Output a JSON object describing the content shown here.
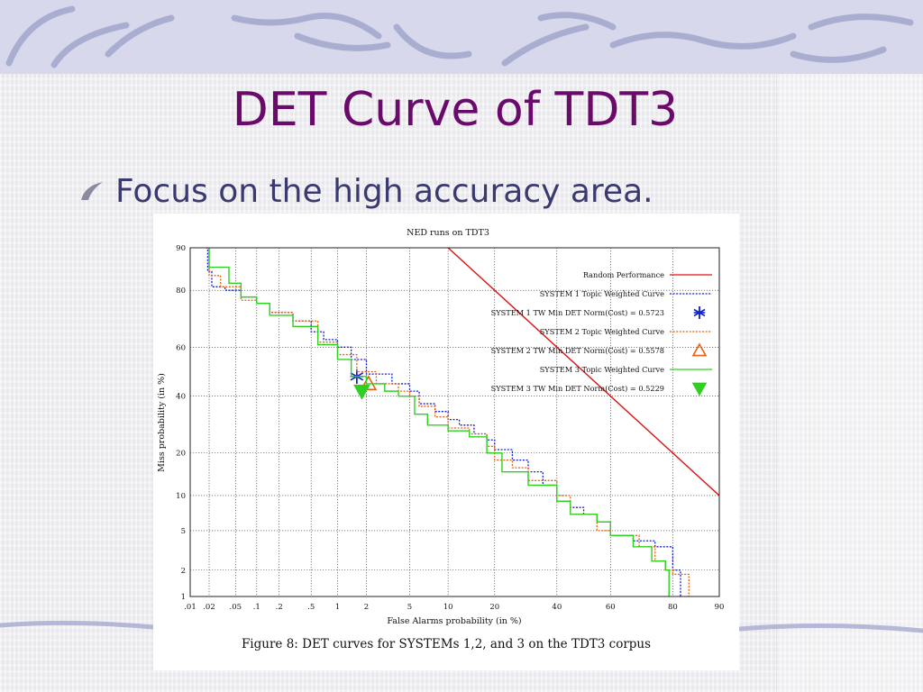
{
  "slide": {
    "title": "DET Curve of TDT3",
    "bullet": "Focus on the high accuracy area."
  },
  "chart_data": {
    "type": "line",
    "title": "NED runs on TDT3",
    "xlabel": "False Alarms probability (in %)",
    "ylabel": "Miss probability (in %)",
    "xscale": "normal-deviate",
    "yscale": "normal-deviate",
    "x_ticks": [
      0.01,
      0.02,
      0.05,
      0.1,
      0.2,
      0.5,
      1,
      2,
      5,
      10,
      20,
      40,
      60,
      80,
      90
    ],
    "x_tick_labels": [
      ".01",
      ".02",
      ".05",
      ".1",
      ".2",
      ".5",
      "1",
      "2",
      "5",
      "10",
      "20",
      "40",
      "60",
      "80",
      "90"
    ],
    "y_ticks": [
      1,
      2,
      5,
      10,
      20,
      40,
      60,
      80,
      90
    ],
    "y_tick_labels": [
      "1",
      "2",
      "5",
      "10",
      "20",
      "40",
      "60",
      "80",
      "90"
    ],
    "grid": true,
    "legend_position": "top-right",
    "series": [
      {
        "name": "Random Performance",
        "style": "solid",
        "color": "#e01010",
        "points": [
          [
            10,
            90
          ],
          [
            90,
            10
          ]
        ]
      },
      {
        "name": "SYSTEM 1 Topic Weighted Curve",
        "style": "dotted",
        "color": "#1020d0",
        "points": [
          [
            0.018,
            90
          ],
          [
            0.019,
            85
          ],
          [
            0.022,
            81
          ],
          [
            0.035,
            80
          ],
          [
            0.06,
            78
          ],
          [
            0.1,
            76
          ],
          [
            0.15,
            73
          ],
          [
            0.3,
            70
          ],
          [
            0.5,
            66
          ],
          [
            0.7,
            63
          ],
          [
            1,
            60
          ],
          [
            1.4,
            55
          ],
          [
            2,
            49
          ],
          [
            3.5,
            45
          ],
          [
            5,
            42
          ],
          [
            6,
            37
          ],
          [
            8,
            34
          ],
          [
            10,
            31
          ],
          [
            12,
            29
          ],
          [
            15,
            26
          ],
          [
            18,
            24
          ],
          [
            20,
            21
          ],
          [
            25,
            18
          ],
          [
            30,
            15
          ],
          [
            35,
            12
          ],
          [
            40,
            9
          ],
          [
            45,
            8
          ],
          [
            50,
            7
          ],
          [
            55,
            6
          ],
          [
            60,
            4.5
          ],
          [
            68,
            4
          ],
          [
            75,
            3.5
          ],
          [
            80,
            2
          ],
          [
            82,
            1
          ]
        ]
      },
      {
        "name": "SYSTEM 1 TW Min DET Norm(Cost) = 0.5723",
        "marker": "asterisk",
        "color": "#1020d0",
        "points": [
          [
            1.6,
            48
          ]
        ]
      },
      {
        "name": "SYSTEM 2 Topic Weighted Curve",
        "style": "dotted",
        "color": "#e86010",
        "points": [
          [
            0.018,
            90
          ],
          [
            0.02,
            84
          ],
          [
            0.03,
            81
          ],
          [
            0.06,
            77
          ],
          [
            0.1,
            76
          ],
          [
            0.15,
            73
          ],
          [
            0.3,
            70
          ],
          [
            0.6,
            62
          ],
          [
            1,
            57
          ],
          [
            1.6,
            50
          ],
          [
            2.5,
            45
          ],
          [
            4,
            42
          ],
          [
            5,
            40
          ],
          [
            6,
            36
          ],
          [
            8,
            32
          ],
          [
            10,
            28
          ],
          [
            14,
            26
          ],
          [
            18,
            22
          ],
          [
            20,
            18
          ],
          [
            25,
            16
          ],
          [
            30,
            13
          ],
          [
            40,
            10
          ],
          [
            45,
            7
          ],
          [
            55,
            5
          ],
          [
            60,
            4.5
          ],
          [
            70,
            3.5
          ],
          [
            75,
            2.5
          ],
          [
            78,
            2
          ],
          [
            80,
            1.8
          ],
          [
            84,
            1
          ]
        ]
      },
      {
        "name": "SYSTEM 2 TW Min DET Norm(Cost) = 0.5578",
        "marker": "triangle-up",
        "color": "#e86010",
        "points": [
          [
            2.1,
            45
          ]
        ]
      },
      {
        "name": "SYSTEM 3 Topic Weighted Curve",
        "style": "solid",
        "color": "#30d020",
        "points": [
          [
            0.018,
            90
          ],
          [
            0.02,
            86
          ],
          [
            0.03,
            86
          ],
          [
            0.04,
            82
          ],
          [
            0.06,
            78
          ],
          [
            0.1,
            76
          ],
          [
            0.15,
            72
          ],
          [
            0.3,
            68
          ],
          [
            0.6,
            61
          ],
          [
            1,
            55
          ],
          [
            1.4,
            48
          ],
          [
            2,
            45
          ],
          [
            3,
            42
          ],
          [
            4,
            40
          ],
          [
            5.5,
            33
          ],
          [
            7,
            29
          ],
          [
            10,
            27
          ],
          [
            14,
            25
          ],
          [
            18,
            20
          ],
          [
            22,
            15
          ],
          [
            30,
            12
          ],
          [
            40,
            9
          ],
          [
            45,
            7
          ],
          [
            55,
            6
          ],
          [
            60,
            4.5
          ],
          [
            68,
            3.5
          ],
          [
            74,
            2.5
          ],
          [
            78,
            2
          ],
          [
            79,
            1
          ]
        ]
      },
      {
        "name": "SYSTEM 3 TW Min DET Norm(Cost) = 0.5229",
        "marker": "triangle-down",
        "color": "#30d020",
        "points": [
          [
            1.8,
            42
          ]
        ]
      }
    ],
    "caption": "Figure 8:  DET curves for SYSTEMs 1,2, and 3 on the TDT3 corpus"
  }
}
